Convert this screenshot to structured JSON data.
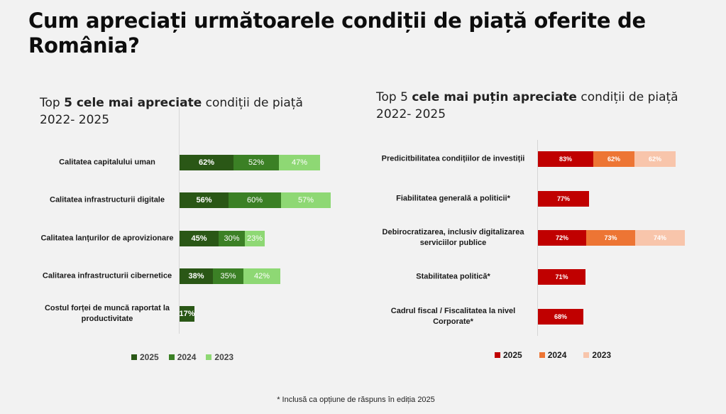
{
  "title": "Cum apreciați următoarele condiții de piață oferite de România?",
  "footnote": "* Inclusă ca opțiune de răspuns în ediția 2025",
  "chart_data": [
    {
      "type": "bar",
      "orientation": "horizontal-stacked",
      "title_parts": [
        {
          "text": "Top ",
          "bold": false
        },
        {
          "text": "5 cele mai apreciate",
          "bold": true
        },
        {
          "text": " condiții de piață",
          "bold": false
        }
      ],
      "subtitle": "2022- 2025",
      "categories": [
        "Calitatea capitalului uman",
        "Calitatea infrastructurii digitale",
        "Calitatea lanțurilor de aprovizionare",
        "Calitarea infrastructurii cibernetice",
        "Costul forței de muncă raportat la productivitate"
      ],
      "series": [
        {
          "name": "2025",
          "color": "#2a5716",
          "values": [
            62,
            56,
            45,
            38,
            17
          ],
          "labels": [
            "62%",
            "56%",
            "45%",
            "38%",
            "17%"
          ]
        },
        {
          "name": "2024",
          "color": "#3b8025",
          "values": [
            52,
            60,
            30,
            35,
            null
          ],
          "labels": [
            "52%",
            "60%",
            "30%",
            "35%",
            ""
          ]
        },
        {
          "name": "2023",
          "color": "#8ed874",
          "values": [
            47,
            57,
            23,
            42,
            null
          ],
          "labels": [
            "47%",
            "57%",
            "23%",
            "42%",
            ""
          ]
        }
      ],
      "unit": "%",
      "legend_position": "bottom",
      "grid": false
    },
    {
      "type": "bar",
      "orientation": "horizontal-stacked",
      "title_parts": [
        {
          "text": "Top 5 ",
          "bold": false
        },
        {
          "text": "cele mai puțin apreciate",
          "bold": true
        },
        {
          "text": " condiții de piață",
          "bold": false
        }
      ],
      "subtitle": "2022- 2025",
      "categories": [
        "Predicitbilitatea condițiilor de investiții",
        "Fiabilitatea generală a politicii*",
        "Debirocratizarea, inclusiv digitalizarea serviciilor publice",
        "Stabilitatea politică*",
        "Cadrul fiscal / Fiscalitatea la nivel Corporate*"
      ],
      "series": [
        {
          "name": "2025",
          "color": "#c00000",
          "values": [
            83,
            77,
            72,
            71,
            68
          ],
          "labels": [
            "83%",
            "77%",
            "72%",
            "71%",
            "68%"
          ]
        },
        {
          "name": "2024",
          "color": "#ed7534",
          "values": [
            62,
            null,
            73,
            null,
            null
          ],
          "labels": [
            "62%",
            "",
            "73%",
            "",
            ""
          ]
        },
        {
          "name": "2023",
          "color": "#f8c5ab",
          "values": [
            62,
            null,
            74,
            null,
            null
          ],
          "labels": [
            "62%",
            "",
            "74%",
            "",
            ""
          ]
        }
      ],
      "unit": "%",
      "legend_position": "bottom",
      "grid": false
    }
  ]
}
